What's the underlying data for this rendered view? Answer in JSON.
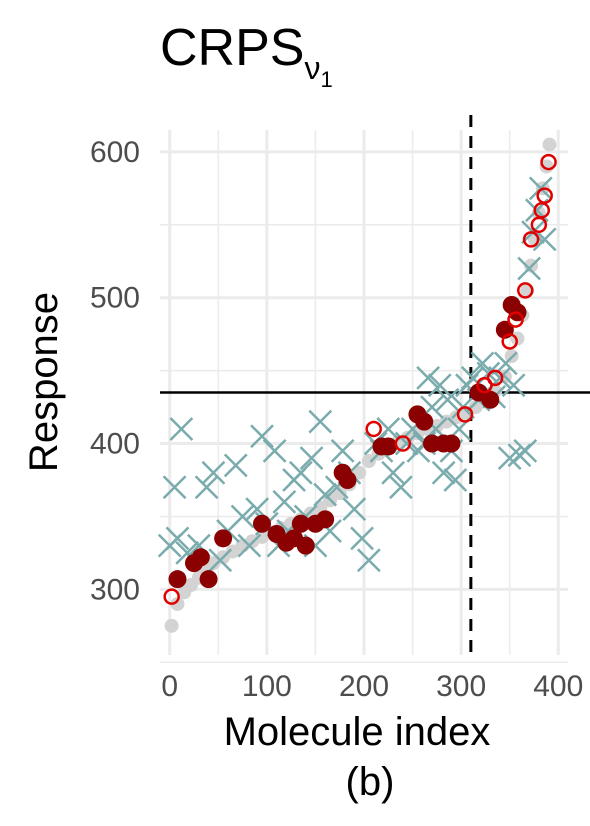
{
  "chart_data": {
    "type": "scatter",
    "title": "CRPS",
    "title_subscript": "ν",
    "title_subsubscript": "1",
    "xlabel": "Molecule index",
    "ylabel": "Response",
    "caption": "(b)",
    "xlim": [
      -10,
      410
    ],
    "ylim": [
      255,
      615
    ],
    "x_ticks": [
      0,
      100,
      200,
      300,
      400
    ],
    "y_ticks": [
      300,
      400,
      500,
      600
    ],
    "x_tick_labels": [
      "0",
      "100",
      "200",
      "300",
      "400"
    ],
    "y_tick_labels": [
      "300",
      "400",
      "500",
      "600"
    ],
    "grid": true,
    "hline_y": 435,
    "vline_x": 310,
    "colors": {
      "background_points": "#d3d3d3",
      "cross": "#7aabad",
      "filled": "#8b0000",
      "open": "#e00000",
      "grid": "#ebebeb",
      "reference_lines": "#000000"
    },
    "series": [
      {
        "marker": "gray-dot",
        "points": [
          [
            2,
            275
          ],
          [
            8,
            290
          ],
          [
            15,
            298
          ],
          [
            22,
            303
          ],
          [
            30,
            308
          ],
          [
            38,
            312
          ],
          [
            45,
            318
          ],
          [
            55,
            322
          ],
          [
            65,
            326
          ],
          [
            75,
            330
          ],
          [
            85,
            333
          ],
          [
            95,
            336
          ],
          [
            105,
            339
          ],
          [
            115,
            342
          ],
          [
            125,
            345
          ],
          [
            135,
            348
          ],
          [
            145,
            352
          ],
          [
            155,
            356
          ],
          [
            165,
            361
          ],
          [
            175,
            366
          ],
          [
            185,
            372
          ],
          [
            195,
            380
          ],
          [
            205,
            388
          ],
          [
            215,
            393
          ],
          [
            225,
            398
          ],
          [
            235,
            401
          ],
          [
            245,
            404
          ],
          [
            255,
            407
          ],
          [
            265,
            410
          ],
          [
            275,
            412
          ],
          [
            285,
            415
          ],
          [
            295,
            418
          ],
          [
            305,
            421
          ],
          [
            315,
            425
          ],
          [
            325,
            430
          ],
          [
            335,
            436
          ],
          [
            345,
            446
          ],
          [
            352,
            460
          ],
          [
            358,
            472
          ],
          [
            363,
            488
          ],
          [
            368,
            505
          ],
          [
            372,
            522
          ],
          [
            376,
            540
          ],
          [
            380,
            558
          ],
          [
            384,
            575
          ],
          [
            388,
            590
          ],
          [
            391,
            605
          ]
        ]
      },
      {
        "marker": "cross",
        "points": [
          [
            0,
            330
          ],
          [
            5,
            370
          ],
          [
            8,
            335
          ],
          [
            12,
            410
          ],
          [
            18,
            325
          ],
          [
            30,
            330
          ],
          [
            38,
            370
          ],
          [
            45,
            380
          ],
          [
            52,
            320
          ],
          [
            60,
            340
          ],
          [
            68,
            385
          ],
          [
            75,
            350
          ],
          [
            82,
            330
          ],
          [
            90,
            355
          ],
          [
            95,
            405
          ],
          [
            100,
            345
          ],
          [
            108,
            395
          ],
          [
            112,
            330
          ],
          [
            118,
            360
          ],
          [
            122,
            340
          ],
          [
            128,
            375
          ],
          [
            135,
            380
          ],
          [
            140,
            350
          ],
          [
            146,
            390
          ],
          [
            150,
            330
          ],
          [
            155,
            415
          ],
          [
            160,
            365
          ],
          [
            165,
            340
          ],
          [
            172,
            370
          ],
          [
            178,
            395
          ],
          [
            185,
            380
          ],
          [
            190,
            355
          ],
          [
            198,
            335
          ],
          [
            205,
            320
          ],
          [
            212,
            400
          ],
          [
            218,
            395
          ],
          [
            225,
            410
          ],
          [
            230,
            380
          ],
          [
            238,
            370
          ],
          [
            244,
            400
          ],
          [
            250,
            410
          ],
          [
            256,
            395
          ],
          [
            262,
            400
          ],
          [
            266,
            445
          ],
          [
            270,
            425
          ],
          [
            274,
            410
          ],
          [
            278,
            440
          ],
          [
            282,
            380
          ],
          [
            286,
            430
          ],
          [
            290,
            395
          ],
          [
            294,
            375
          ],
          [
            298,
            410
          ],
          [
            302,
            425
          ],
          [
            306,
            440
          ],
          [
            312,
            445
          ],
          [
            318,
            430
          ],
          [
            322,
            455
          ],
          [
            328,
            448
          ],
          [
            334,
            432
          ],
          [
            340,
            445
          ],
          [
            346,
            455
          ],
          [
            350,
            390
          ],
          [
            354,
            440
          ],
          [
            360,
            392
          ],
          [
            366,
            395
          ],
          [
            370,
            520
          ],
          [
            374,
            545
          ],
          [
            378,
            560
          ],
          [
            382,
            575
          ],
          [
            386,
            540
          ]
        ]
      },
      {
        "marker": "filled-circle",
        "points": [
          [
            8,
            307
          ],
          [
            25,
            318
          ],
          [
            32,
            322
          ],
          [
            40,
            307
          ],
          [
            55,
            335
          ],
          [
            95,
            345
          ],
          [
            110,
            338
          ],
          [
            120,
            332
          ],
          [
            128,
            335
          ],
          [
            135,
            345
          ],
          [
            140,
            330
          ],
          [
            150,
            345
          ],
          [
            160,
            348
          ],
          [
            178,
            380
          ],
          [
            183,
            375
          ],
          [
            218,
            398
          ],
          [
            225,
            398
          ],
          [
            255,
            420
          ],
          [
            262,
            415
          ],
          [
            270,
            400
          ],
          [
            282,
            400
          ],
          [
            290,
            400
          ],
          [
            318,
            435
          ],
          [
            330,
            430
          ],
          [
            345,
            478
          ],
          [
            352,
            495
          ],
          [
            358,
            490
          ]
        ]
      },
      {
        "marker": "open-circle",
        "points": [
          [
            2,
            295
          ],
          [
            210,
            410
          ],
          [
            240,
            400
          ],
          [
            304,
            420
          ],
          [
            324,
            440
          ],
          [
            335,
            445
          ],
          [
            350,
            470
          ],
          [
            356,
            485
          ],
          [
            366,
            505
          ],
          [
            372,
            540
          ],
          [
            380,
            550
          ],
          [
            383,
            560
          ],
          [
            386,
            570
          ],
          [
            390,
            593
          ]
        ]
      }
    ]
  }
}
